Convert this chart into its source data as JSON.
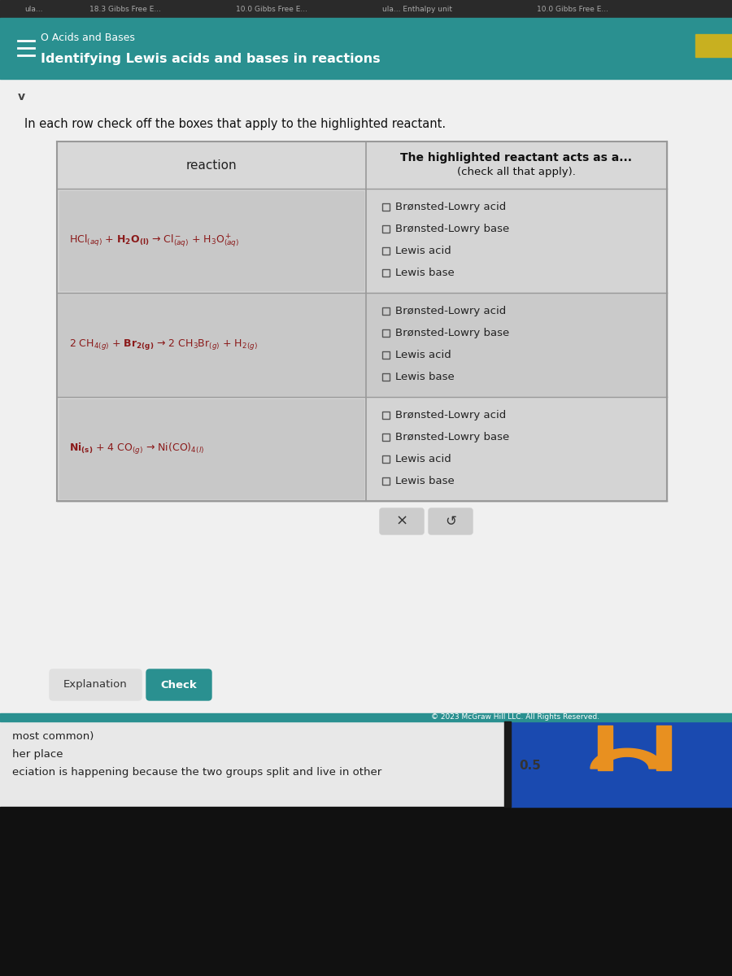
{
  "bg_color": "#c8c8c8",
  "top_browser_bg": "#2a2a2a",
  "browser_tabs": [
    "ula...",
    "18.3 Gibbs Free E...",
    "10.0 Gibbs Free E...",
    "ula... Enthalpy unit",
    "10.0 Gibbs Free E..."
  ],
  "top_bar_color": "#2a9090",
  "top_bar_text1": "O Acids and Bases",
  "top_bar_text2": "Identifying Lewis acids and bases in reactions",
  "top_bar_text_color": "#ffffff",
  "gold_rect_color": "#c8b020",
  "content_bg": "#f0f0f0",
  "header_text": "In each row check off the boxes that apply to the highlighted reactant.",
  "header_text_color": "#111111",
  "table_border_color": "#999999",
  "table_header_bg": "#d8d8d8",
  "table_row_bg": "#d0d0d0",
  "col1_header": "reaction",
  "col2_header_line1": "The highlighted reactant acts as a...",
  "col2_header_line2": "(check all that apply).",
  "checkboxes": [
    [
      "Brønsted-Lowry acid",
      "Brønsted-Lowry base",
      "Lewis acid",
      "Lewis base"
    ],
    [
      "Brønsted-Lowry acid",
      "Brønsted-Lowry base",
      "Lewis acid",
      "Lewis base"
    ],
    [
      "Brønsted-Lowry acid",
      "Brønsted-Lowry base",
      "Lewis acid",
      "Lewis base"
    ]
  ],
  "reaction_color": "#8b1a1a",
  "button_explanation_color": "#e8e8e8",
  "button_check_color": "#2a9090",
  "bottom_teal_color": "#2a9090",
  "bottom_content_bg": "#e8e8e8",
  "bottom_texts": [
    "most common)",
    "her place",
    "eciation is happening because the two groups split and live in other"
  ],
  "footer_text": "© 2023 McGraw Hill LLC. All Rights Reserved.",
  "footer_value": "0.5",
  "blue_panel_color": "#1a4ab0",
  "orange_color": "#e89020",
  "black_bar_color": "#1a1a1a",
  "dark_bottom_color": "#111111"
}
